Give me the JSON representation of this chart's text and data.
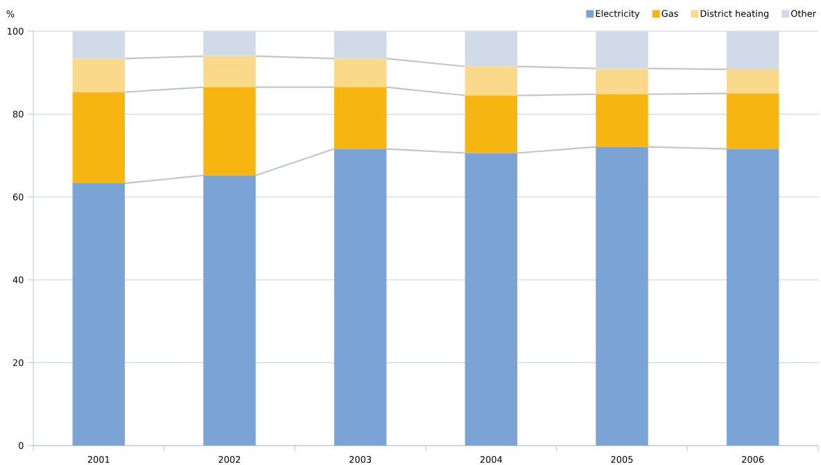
{
  "chart_data": {
    "type": "bar",
    "stacked": true,
    "ylabel": "%",
    "categories": [
      "2001",
      "2002",
      "2003",
      "2004",
      "2005",
      "2006"
    ],
    "series": [
      {
        "name": "Electricity",
        "color": "#7ba3d5",
        "values": [
          63.3,
          65.2,
          71.6,
          70.6,
          72.1,
          71.6
        ]
      },
      {
        "name": "Gas",
        "color": "#f7b511",
        "values": [
          22.0,
          21.3,
          14.9,
          13.9,
          12.7,
          13.4
        ]
      },
      {
        "name": "District heating",
        "color": "#fbd98b",
        "values": [
          8.1,
          7.5,
          6.9,
          7.0,
          6.2,
          5.8
        ]
      },
      {
        "name": "Other",
        "color": "#d0dbe7",
        "values": [
          6.6,
          6.0,
          6.6,
          8.5,
          9.0,
          9.2
        ]
      }
    ],
    "ylim": [
      0,
      100
    ],
    "yticks": [
      0,
      20,
      40,
      60,
      80,
      100
    ],
    "grid": "y",
    "legend": "top right"
  }
}
